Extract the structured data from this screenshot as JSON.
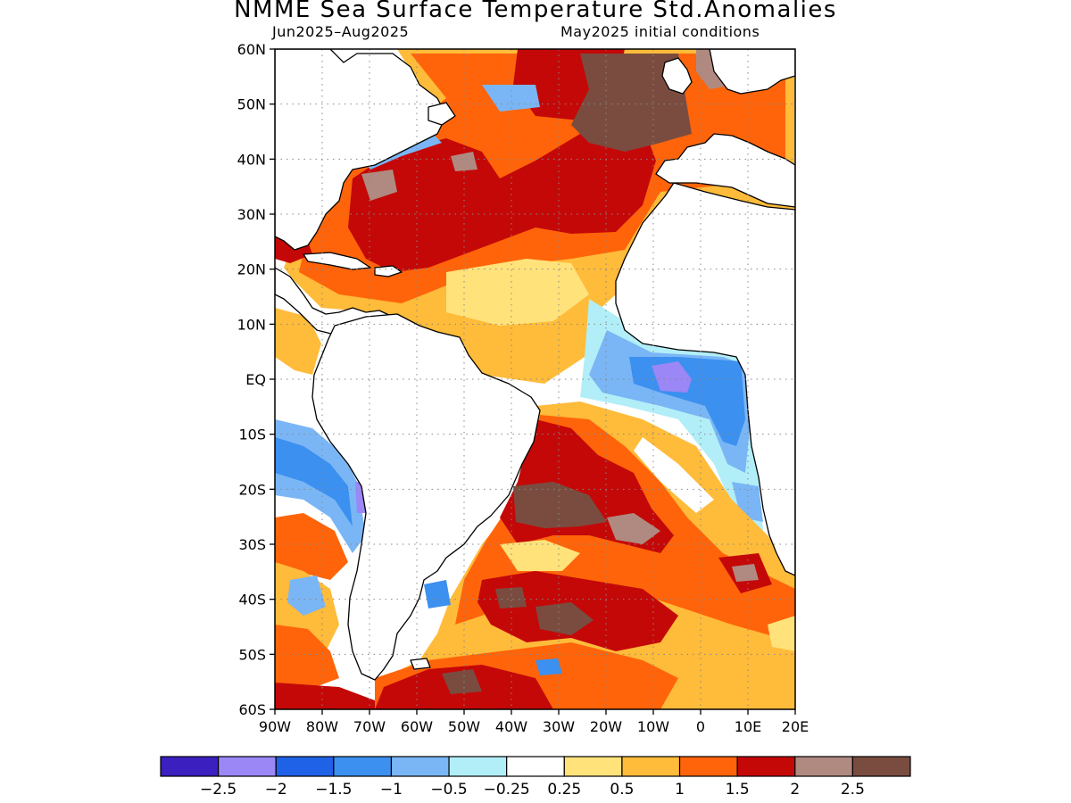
{
  "header": {
    "title": "NMME Sea Surface Temperature Std.Anomalies",
    "period": "Jun2025–Aug2025",
    "init": "May2025 initial conditions"
  },
  "map": {
    "lon_range": [
      -90,
      20
    ],
    "lat_range": [
      -60,
      60
    ],
    "lat_ticks": [
      {
        "value": 60,
        "label": "60N"
      },
      {
        "value": 50,
        "label": "50N"
      },
      {
        "value": 40,
        "label": "40N"
      },
      {
        "value": 30,
        "label": "30N"
      },
      {
        "value": 20,
        "label": "20N"
      },
      {
        "value": 10,
        "label": "10N"
      },
      {
        "value": 0,
        "label": "EQ"
      },
      {
        "value": -10,
        "label": "10S"
      },
      {
        "value": -20,
        "label": "20S"
      },
      {
        "value": -30,
        "label": "30S"
      },
      {
        "value": -40,
        "label": "40S"
      },
      {
        "value": -50,
        "label": "50S"
      },
      {
        "value": -60,
        "label": "60S"
      }
    ],
    "lon_ticks": [
      {
        "value": -90,
        "label": "90W"
      },
      {
        "value": -80,
        "label": "80W"
      },
      {
        "value": -70,
        "label": "70W"
      },
      {
        "value": -60,
        "label": "60W"
      },
      {
        "value": -50,
        "label": "50W"
      },
      {
        "value": -40,
        "label": "40W"
      },
      {
        "value": -30,
        "label": "30W"
      },
      {
        "value": -20,
        "label": "20W"
      },
      {
        "value": -10,
        "label": "10W"
      },
      {
        "value": 0,
        "label": "0"
      },
      {
        "value": 10,
        "label": "10E"
      },
      {
        "value": 20,
        "label": "20E"
      }
    ],
    "gridlines": "dotted"
  },
  "colorbar": {
    "colors": [
      "#3b1fbf",
      "#9b87f5",
      "#1f62e8",
      "#3b90f0",
      "#7ab6f5",
      "#b2eef8",
      "#ffffff",
      "#ffe27a",
      "#ffbb3a",
      "#ff640a",
      "#c40808",
      "#b08a80",
      "#7a4c40"
    ],
    "labels": [
      "−2.5",
      "−2",
      "−1.5",
      "−1",
      "−0.5",
      "−0.25",
      "0.25",
      "0.5",
      "1",
      "1.5",
      "2",
      "2.5"
    ]
  }
}
